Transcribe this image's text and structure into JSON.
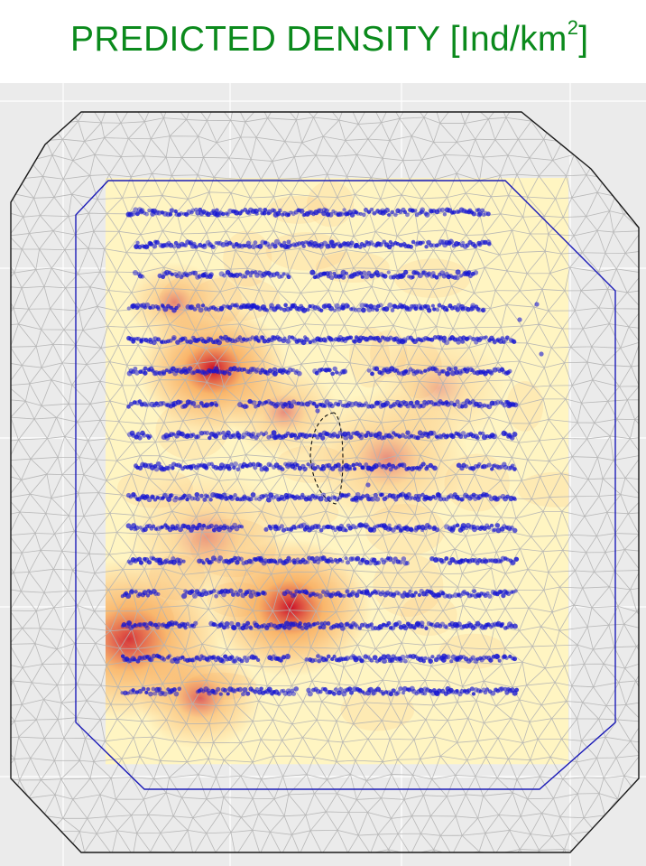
{
  "title": {
    "main": "PREDICTED DENSITY [Ind/km",
    "superscript": "2",
    "close": "]"
  },
  "colors": {
    "title": "#0b8a1c",
    "panel_background": "#ebebeb",
    "grid": "#ffffff",
    "mesh_edges": "#b3b3b3",
    "outer_boundary": "#1a1a1a",
    "inner_boundary": "#1c1cb8",
    "sightings": "#1414d2",
    "density_low": "#fff5c2",
    "density_mid": "#f7a04d",
    "density_high": "#c8001e"
  },
  "chart_data": {
    "type": "heatmap",
    "description_scale": "predicted density, normalized 0-1",
    "grid": true,
    "legend": "none",
    "xlim": [
      0,
      1
    ],
    "ylim": [
      0,
      1
    ],
    "survey_region": {
      "x": [
        0.16,
        0.88
      ],
      "y": [
        0.13,
        0.88
      ]
    },
    "transects": [
      {
        "y": 0.835,
        "x": [
          0.2,
          0.76
        ]
      },
      {
        "y": 0.794,
        "x": [
          0.21,
          0.76
        ]
      },
      {
        "y": 0.755,
        "x": [
          0.21,
          0.74
        ]
      },
      {
        "y": 0.713,
        "x": [
          0.2,
          0.75
        ]
      },
      {
        "y": 0.672,
        "x": [
          0.2,
          0.8
        ]
      },
      {
        "y": 0.632,
        "x": [
          0.2,
          0.79
        ]
      },
      {
        "y": 0.59,
        "x": [
          0.2,
          0.8
        ]
      },
      {
        "y": 0.55,
        "x": [
          0.2,
          0.8
        ]
      },
      {
        "y": 0.51,
        "x": [
          0.21,
          0.8
        ]
      },
      {
        "y": 0.471,
        "x": [
          0.2,
          0.8
        ]
      },
      {
        "y": 0.432,
        "x": [
          0.2,
          0.8
        ]
      },
      {
        "y": 0.39,
        "x": [
          0.2,
          0.8
        ]
      },
      {
        "y": 0.348,
        "x": [
          0.19,
          0.8
        ]
      },
      {
        "y": 0.307,
        "x": [
          0.19,
          0.8
        ]
      },
      {
        "y": 0.265,
        "x": [
          0.19,
          0.8
        ]
      },
      {
        "y": 0.223,
        "x": [
          0.19,
          0.8
        ]
      }
    ],
    "hotspots": [
      {
        "x": 0.33,
        "y": 0.635,
        "sigma": 0.055,
        "density": 1.0
      },
      {
        "x": 0.45,
        "y": 0.33,
        "sigma": 0.06,
        "density": 1.0
      },
      {
        "x": 0.2,
        "y": 0.29,
        "sigma": 0.07,
        "density": 0.9
      },
      {
        "x": 0.31,
        "y": 0.215,
        "sigma": 0.045,
        "density": 0.65
      },
      {
        "x": 0.27,
        "y": 0.72,
        "sigma": 0.035,
        "density": 0.5
      },
      {
        "x": 0.6,
        "y": 0.52,
        "sigma": 0.06,
        "density": 0.45
      },
      {
        "x": 0.32,
        "y": 0.42,
        "sigma": 0.06,
        "density": 0.4
      },
      {
        "x": 0.44,
        "y": 0.58,
        "sigma": 0.04,
        "density": 0.45
      },
      {
        "x": 0.68,
        "y": 0.61,
        "sigma": 0.05,
        "density": 0.3
      }
    ]
  }
}
